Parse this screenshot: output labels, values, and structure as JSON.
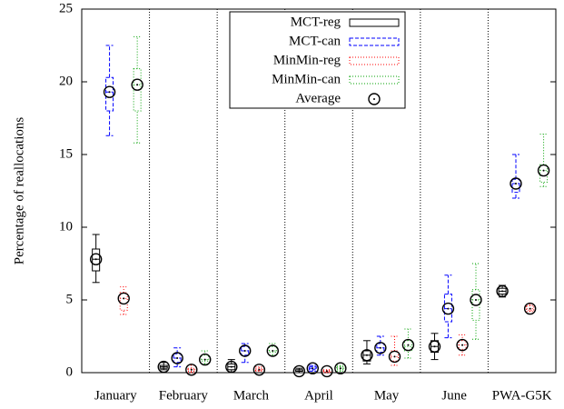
{
  "chart_data": {
    "type": "box",
    "y_label": "Percentage of reallocations",
    "categories": [
      "January",
      "February",
      "March",
      "April",
      "May",
      "June",
      "PWA-G5K"
    ],
    "ylim": [
      0,
      25
    ],
    "yticks": [
      0,
      5,
      10,
      15,
      20,
      25
    ],
    "mean_name": "Average",
    "mean_color": "#000000",
    "legend_position": "top-center",
    "series": [
      {
        "name": "MCT-reg",
        "color": "#000000",
        "dash": "none",
        "min": [
          6.2,
          0.2,
          0.0,
          0.0,
          0.6,
          0.9,
          5.2
        ],
        "q1": [
          7.0,
          0.3,
          0.2,
          0.1,
          0.8,
          1.4,
          5.4
        ],
        "median": [
          7.8,
          0.4,
          0.4,
          0.1,
          1.2,
          1.8,
          5.6
        ],
        "q3": [
          8.5,
          0.5,
          0.6,
          0.2,
          1.5,
          2.2,
          5.8
        ],
        "max": [
          9.5,
          0.7,
          0.9,
          0.3,
          2.2,
          2.7,
          6.0
        ],
        "mean": [
          7.8,
          0.4,
          0.4,
          0.1,
          1.2,
          1.8,
          5.6
        ]
      },
      {
        "name": "MCT-can",
        "color": "#0000ff",
        "dash": "4,2",
        "min": [
          16.3,
          0.4,
          0.7,
          0.1,
          1.2,
          2.4,
          12.0
        ],
        "q1": [
          18.0,
          0.7,
          1.2,
          0.2,
          1.4,
          3.5,
          12.4
        ],
        "median": [
          19.3,
          1.0,
          1.5,
          0.3,
          1.7,
          4.4,
          13.0
        ],
        "q3": [
          20.3,
          1.3,
          1.8,
          0.4,
          2.0,
          5.4,
          13.3
        ],
        "max": [
          22.5,
          1.7,
          2.0,
          0.5,
          2.5,
          6.7,
          15.0
        ],
        "mean": [
          19.3,
          1.0,
          1.5,
          0.3,
          1.7,
          4.4,
          13.0
        ]
      },
      {
        "name": "MinMin-reg",
        "color": "#ff0000",
        "dash": "1,2",
        "min": [
          4.0,
          0.0,
          0.1,
          0.0,
          0.5,
          1.2,
          4.2
        ],
        "q1": [
          4.3,
          0.1,
          0.15,
          0.05,
          0.8,
          1.6,
          4.3
        ],
        "median": [
          5.1,
          0.2,
          0.2,
          0.1,
          1.1,
          1.9,
          4.4
        ],
        "q3": [
          5.5,
          0.3,
          0.3,
          0.15,
          1.5,
          2.2,
          4.6
        ],
        "max": [
          5.9,
          0.5,
          0.4,
          0.2,
          2.5,
          2.6,
          4.7
        ],
        "mean": [
          5.1,
          0.2,
          0.2,
          0.1,
          1.1,
          1.9,
          4.4
        ]
      },
      {
        "name": "MinMin-can",
        "color": "#00a000",
        "dash": "1,2",
        "min": [
          15.8,
          0.6,
          1.2,
          0.1,
          1.0,
          2.3,
          12.8
        ],
        "q1": [
          18.0,
          0.8,
          1.4,
          0.2,
          1.5,
          3.6,
          13.1
        ],
        "median": [
          19.8,
          0.9,
          1.5,
          0.3,
          1.8,
          5.0,
          13.9
        ],
        "q3": [
          20.9,
          1.2,
          1.8,
          0.4,
          2.2,
          5.7,
          14.3
        ],
        "max": [
          23.1,
          1.5,
          2.0,
          0.5,
          3.0,
          7.5,
          16.4
        ],
        "mean": [
          19.8,
          0.9,
          1.5,
          0.3,
          1.9,
          5.0,
          13.9
        ]
      }
    ]
  }
}
